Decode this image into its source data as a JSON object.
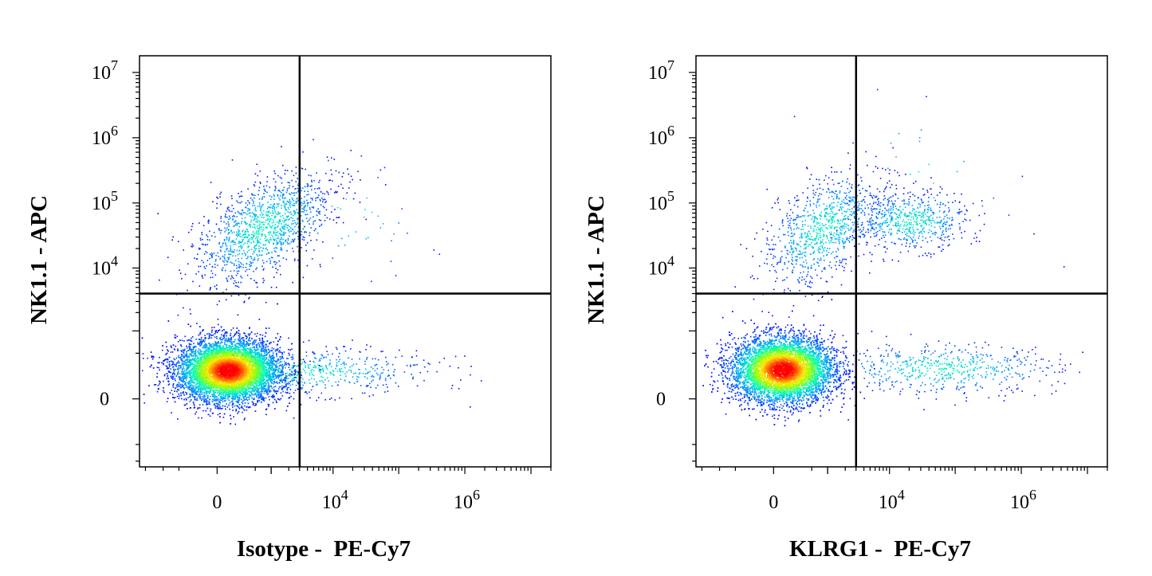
{
  "chart_data": [
    {
      "type": "scatter",
      "subtype": "flow-cytometry density dot plot (pseudocolor)",
      "xlabel": "Isotype -  PE-Cy7",
      "ylabel": "NK1.1 - APC",
      "x_scale": "biexponential",
      "y_scale": "biexponential",
      "x_ticks": [
        {
          "value": 0,
          "base": "0",
          "exp": ""
        },
        {
          "value": 10000,
          "base": "10",
          "exp": "4"
        },
        {
          "value": 1000000,
          "base": "10",
          "exp": "6"
        }
      ],
      "y_ticks": [
        {
          "value": 10000000,
          "base": "10",
          "exp": "7"
        },
        {
          "value": 1000000,
          "base": "10",
          "exp": "6"
        },
        {
          "value": 100000,
          "base": "10",
          "exp": "5"
        },
        {
          "value": 10000,
          "base": "10",
          "exp": "4"
        },
        {
          "value": 0,
          "base": "0",
          "exp": ""
        }
      ],
      "quadrant_gate": {
        "x": 3000,
        "y": 4000
      },
      "populations": [
        {
          "name": "",
          "quadrant": "lower-left",
          "x_center": 0,
          "y_center": 0,
          "density": "very high",
          "approx_events": 9000
        },
        {
          "name": "",
          "quadrant": "upper-left",
          "x_center": 1500,
          "y_center": 50000,
          "density": "medium",
          "approx_events": 1300
        },
        {
          "name": "",
          "quadrant": "lower-right",
          "x_center": 10000,
          "y_center": 0,
          "density": "low",
          "approx_events": 700
        },
        {
          "name": "",
          "quadrant": "upper-right",
          "x_center": 20000,
          "y_center": 15000,
          "density": "sparse",
          "approx_events": 40
        }
      ],
      "grid": false,
      "legend": "none",
      "color_scale": [
        "#0000ff",
        "#00b0ff",
        "#00ff80",
        "#ffff00",
        "#ff8000",
        "#ff0000"
      ]
    },
    {
      "type": "scatter",
      "subtype": "flow-cytometry density dot plot (pseudocolor)",
      "xlabel": "KLRG1 -  PE-Cy7",
      "ylabel": "NK1.1 - APC",
      "x_scale": "biexponential",
      "y_scale": "biexponential",
      "x_ticks": [
        {
          "value": 0,
          "base": "0",
          "exp": ""
        },
        {
          "value": 10000,
          "base": "10",
          "exp": "4"
        },
        {
          "value": 1000000,
          "base": "10",
          "exp": "6"
        }
      ],
      "y_ticks": [
        {
          "value": 10000000,
          "base": "10",
          "exp": "7"
        },
        {
          "value": 1000000,
          "base": "10",
          "exp": "6"
        },
        {
          "value": 100000,
          "base": "10",
          "exp": "5"
        },
        {
          "value": 10000,
          "base": "10",
          "exp": "4"
        },
        {
          "value": 0,
          "base": "0",
          "exp": ""
        }
      ],
      "quadrant_gate": {
        "x": 3000,
        "y": 4000
      },
      "populations": [
        {
          "name": "",
          "quadrant": "lower-left",
          "x_center": 0,
          "y_center": 0,
          "density": "very high",
          "approx_events": 9000
        },
        {
          "name": "",
          "quadrant": "upper-left",
          "x_center": 1500,
          "y_center": 50000,
          "density": "medium",
          "approx_events": 900
        },
        {
          "name": "",
          "quadrant": "upper-right",
          "x_center": 40000,
          "y_center": 50000,
          "density": "medium",
          "approx_events": 600
        },
        {
          "name": "",
          "quadrant": "lower-right",
          "x_center": 60000,
          "y_center": 0,
          "density": "low",
          "approx_events": 550
        }
      ],
      "grid": false,
      "legend": "none",
      "color_scale": [
        "#0000ff",
        "#00b0ff",
        "#00ff80",
        "#ffff00",
        "#ff8000",
        "#ff0000"
      ]
    }
  ]
}
